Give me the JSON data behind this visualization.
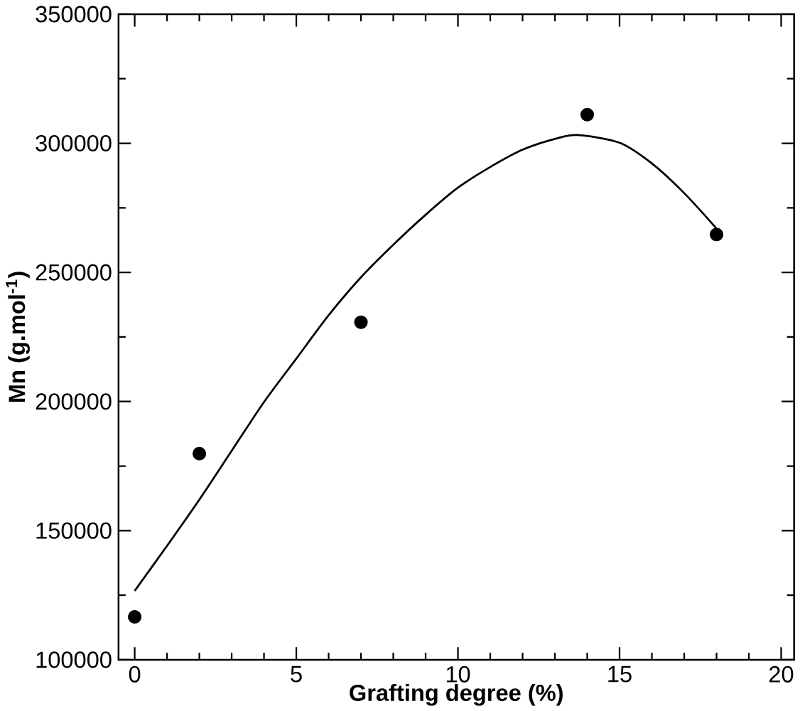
{
  "chart_data": {
    "type": "scatter",
    "xlabel": "Grafting degree (%)",
    "ylabel": "Mn (g.mol$^{-1}$)",
    "xlim": [
      -0.5,
      20.4
    ],
    "ylim": [
      100000,
      350000
    ],
    "xticks": [
      0,
      5,
      10,
      15,
      20
    ],
    "yticks": [
      100000,
      150000,
      200000,
      250000,
      300000,
      350000
    ],
    "grid": false,
    "series": [
      {
        "color": "#000000",
        "marker": "circle",
        "x": [
          0,
          2,
          7,
          14,
          18
        ],
        "values": [
          116600,
          179800,
          230700,
          311100,
          264700
        ]
      },
      {
        "type": "line",
        "color": "#000000",
        "marker": "none",
        "line_style": "solid",
        "x": [
          0,
          1,
          2,
          3,
          4,
          5,
          6,
          7,
          8,
          9,
          10,
          11,
          12,
          13,
          13.7,
          15,
          16,
          17,
          18
        ],
        "values": [
          126700,
          144100,
          162000,
          180900,
          199800,
          216600,
          233400,
          248100,
          260700,
          272300,
          282800,
          290800,
          297500,
          301700,
          303200,
          300200,
          292200,
          280700,
          267000
        ]
      }
    ]
  }
}
